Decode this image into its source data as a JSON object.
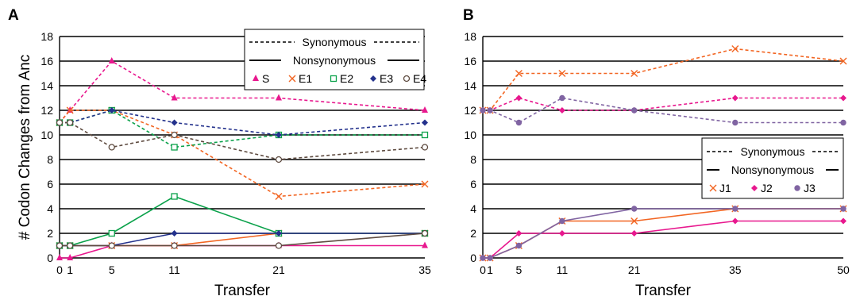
{
  "figure": {
    "shared_ylabel": "# Codon Changes from Anc"
  },
  "chart_data": [
    {
      "panel": "A",
      "type": "line",
      "xlabel": "Transfer",
      "ylabel": "# Codon Changes from Anc",
      "x": [
        0,
        1,
        5,
        11,
        21,
        35
      ],
      "xticks": [
        "0",
        "1",
        "5",
        "11",
        "21",
        "35"
      ],
      "ylim": [
        0,
        18
      ],
      "yticks": [
        "0",
        "2",
        "4",
        "6",
        "8",
        "10",
        "12",
        "14",
        "16",
        "18"
      ],
      "grid": "horizontal",
      "legend": {
        "placement": "top-right",
        "style_entries": [
          "Synonymous",
          "Nonsynonymous"
        ],
        "series_entries": [
          "S",
          "E1",
          "E2",
          "E3",
          "E4"
        ]
      },
      "series": [
        {
          "name": "S",
          "type": "synonymous",
          "color": "#e8188e",
          "marker": "triangle",
          "values": [
            11,
            12,
            16,
            13,
            13,
            12
          ]
        },
        {
          "name": "S",
          "type": "nonsynonymous",
          "color": "#e8188e",
          "marker": "triangle",
          "values": [
            0,
            0,
            1,
            1,
            1,
            1
          ]
        },
        {
          "name": "E1",
          "type": "synonymous",
          "color": "#f26522",
          "marker": "x",
          "values": [
            11,
            12,
            12,
            10,
            5,
            6
          ]
        },
        {
          "name": "E1",
          "type": "nonsynonymous",
          "color": "#f26522",
          "marker": "x",
          "values": [
            1,
            1,
            1,
            1,
            2,
            2
          ]
        },
        {
          "name": "E2",
          "type": "synonymous",
          "color": "#0aa14a",
          "marker": "square-open",
          "values": [
            11,
            11,
            12,
            9,
            10,
            10
          ]
        },
        {
          "name": "E2",
          "type": "nonsynonymous",
          "color": "#0aa14a",
          "marker": "square-open",
          "values": [
            1,
            1,
            2,
            5,
            2,
            2
          ]
        },
        {
          "name": "E3",
          "type": "synonymous",
          "color": "#23318c",
          "marker": "diamond",
          "values": [
            11,
            11,
            12,
            11,
            10,
            11
          ]
        },
        {
          "name": "E3",
          "type": "nonsynonymous",
          "color": "#23318c",
          "marker": "diamond",
          "values": [
            1,
            1,
            1,
            2,
            2,
            2
          ]
        },
        {
          "name": "E4",
          "type": "synonymous",
          "color": "#5e4b40",
          "marker": "circle-open",
          "values": [
            11,
            11,
            9,
            10,
            8,
            9
          ]
        },
        {
          "name": "E4",
          "type": "nonsynonymous",
          "color": "#5e4b40",
          "marker": "circle-open",
          "values": [
            1,
            1,
            1,
            1,
            1,
            2
          ]
        }
      ]
    },
    {
      "panel": "B",
      "type": "line",
      "xlabel": "Transfer",
      "x": [
        0,
        1,
        5,
        11,
        21,
        35,
        50
      ],
      "xticks": [
        "0",
        "1",
        "5",
        "11",
        "21",
        "35",
        "50"
      ],
      "ylim": [
        0,
        18
      ],
      "yticks": [
        "0",
        "2",
        "4",
        "6",
        "8",
        "10",
        "12",
        "14",
        "16",
        "18"
      ],
      "grid": "horizontal",
      "legend": {
        "placement": "middle-right",
        "style_entries": [
          "Synonymous",
          "Nonsynonymous"
        ],
        "series_entries": [
          "J1",
          "J2",
          "J3"
        ]
      },
      "series": [
        {
          "name": "J1",
          "type": "synonymous",
          "color": "#f26522",
          "marker": "x",
          "values": [
            12,
            12,
            15,
            15,
            15,
            17,
            16
          ]
        },
        {
          "name": "J1",
          "type": "nonsynonymous",
          "color": "#f26522",
          "marker": "x",
          "values": [
            0,
            0,
            1,
            3,
            3,
            4,
            4
          ]
        },
        {
          "name": "J2",
          "type": "synonymous",
          "color": "#e8188e",
          "marker": "diamond",
          "values": [
            12,
            12,
            13,
            12,
            12,
            13,
            13
          ]
        },
        {
          "name": "J2",
          "type": "nonsynonymous",
          "color": "#e8188e",
          "marker": "diamond",
          "values": [
            0,
            0,
            2,
            2,
            2,
            3,
            3
          ]
        },
        {
          "name": "J3",
          "type": "synonymous",
          "color": "#8064a2",
          "marker": "circle",
          "values": [
            12,
            12,
            11,
            13,
            12,
            11,
            11
          ]
        },
        {
          "name": "J3",
          "type": "nonsynonymous",
          "color": "#8064a2",
          "marker": "circle",
          "values": [
            0,
            0,
            1,
            3,
            4,
            4,
            4
          ]
        }
      ]
    }
  ]
}
